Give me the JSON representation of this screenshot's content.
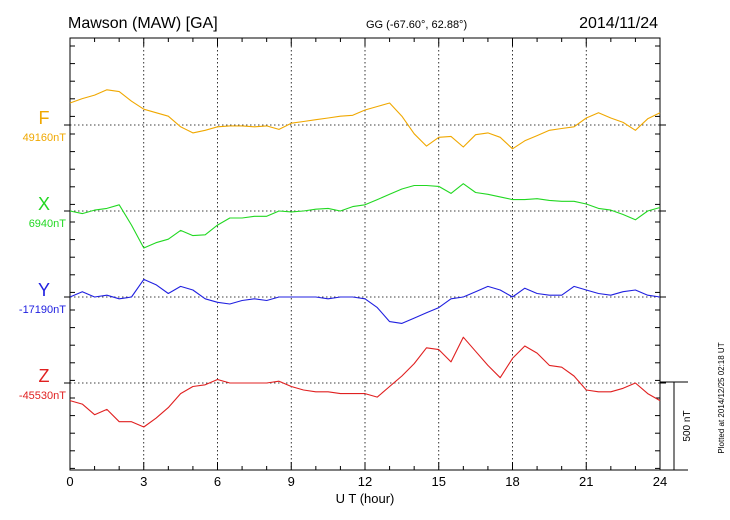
{
  "header": {
    "station": "Mawson (MAW)  [GA]",
    "coords": "GG (-67.60°,  62.88°)",
    "date": "2014/11/24"
  },
  "side_note": "Plotted at 2014/12/25 02:18 UT",
  "scale_label": "500 nT",
  "chart_data": {
    "type": "line",
    "xlabel": "U T (hour)",
    "xlim": [
      0,
      24
    ],
    "xticks": [
      "0",
      "3",
      "6",
      "9",
      "12",
      "15",
      "18",
      "21",
      "24"
    ],
    "scale_bar_nT": 500,
    "grid": true,
    "series": [
      {
        "name": "F",
        "baseline_label": "49160nT",
        "baseline_nT": 49160,
        "color": "#f0a800",
        "x": [
          0,
          0.5,
          1,
          1.5,
          2,
          2.5,
          3,
          3.5,
          4,
          4.5,
          5,
          5.5,
          6,
          6.5,
          7,
          7.5,
          8,
          8.5,
          9,
          9.5,
          10,
          10.5,
          11,
          11.5,
          12,
          12.5,
          13,
          13.5,
          14,
          14.5,
          15,
          15.5,
          16,
          16.5,
          17,
          17.5,
          18,
          18.5,
          19,
          19.5,
          20,
          20.5,
          21,
          21.5,
          22,
          22.5,
          23,
          23.5,
          24
        ],
        "offset_nT": [
          125,
          150,
          170,
          200,
          190,
          135,
          90,
          70,
          50,
          -10,
          -45,
          -30,
          -10,
          -5,
          -5,
          -10,
          -5,
          -25,
          10,
          20,
          30,
          40,
          50,
          55,
          85,
          105,
          125,
          50,
          -50,
          -120,
          -70,
          -65,
          -125,
          -55,
          -45,
          -70,
          -135,
          -90,
          -60,
          -30,
          -20,
          -10,
          40,
          70,
          40,
          15,
          -30,
          35,
          70
        ]
      },
      {
        "name": "X",
        "baseline_label": "6940nT",
        "baseline_nT": 6940,
        "color": "#22d822",
        "x": [
          0,
          0.5,
          1,
          1.5,
          2,
          2.5,
          3,
          3.5,
          4,
          4.5,
          5,
          5.5,
          6,
          6.5,
          7,
          7.5,
          8,
          8.5,
          9,
          9.5,
          10,
          10.5,
          11,
          11.5,
          12,
          12.5,
          13,
          13.5,
          14,
          14.5,
          15,
          15.5,
          16,
          16.5,
          17,
          17.5,
          18,
          18.5,
          19,
          19.5,
          20,
          20.5,
          21,
          21.5,
          22,
          22.5,
          23,
          23.5,
          24
        ],
        "offset_nT": [
          0,
          -15,
          5,
          15,
          35,
          -80,
          -210,
          -180,
          -160,
          -110,
          -140,
          -135,
          -80,
          -40,
          -40,
          -30,
          -30,
          0,
          -5,
          0,
          10,
          15,
          0,
          25,
          35,
          65,
          95,
          125,
          145,
          145,
          140,
          100,
          155,
          105,
          95,
          80,
          65,
          65,
          70,
          60,
          55,
          55,
          40,
          15,
          5,
          -20,
          -50,
          0,
          20
        ]
      },
      {
        "name": "Y",
        "baseline_label": "-17190nT",
        "baseline_nT": -17190,
        "color": "#2020e0",
        "x": [
          0,
          0.5,
          1,
          1.5,
          2,
          2.5,
          3,
          3.5,
          4,
          4.5,
          5,
          5.5,
          6,
          6.5,
          7,
          7.5,
          8,
          8.5,
          9,
          9.5,
          10,
          10.5,
          11,
          11.5,
          12,
          12.5,
          13,
          13.5,
          14,
          14.5,
          15,
          15.5,
          16,
          16.5,
          17,
          17.5,
          18,
          18.5,
          19,
          19.5,
          20,
          20.5,
          21,
          21.5,
          22,
          22.5,
          23,
          23.5,
          24
        ],
        "offset_nT": [
          0,
          30,
          0,
          10,
          -10,
          0,
          100,
          70,
          20,
          60,
          40,
          -10,
          -30,
          -40,
          -20,
          -10,
          -20,
          0,
          0,
          0,
          0,
          -10,
          0,
          0,
          -10,
          -60,
          -140,
          -150,
          -120,
          -90,
          -60,
          -10,
          0,
          30,
          60,
          40,
          0,
          50,
          20,
          10,
          10,
          60,
          40,
          20,
          10,
          30,
          40,
          10,
          0
        ]
      },
      {
        "name": "Z",
        "baseline_label": "-45530nT",
        "baseline_nT": -45530,
        "color": "#e02020",
        "x": [
          0,
          0.5,
          1,
          1.5,
          2,
          2.5,
          3,
          3.5,
          4,
          4.5,
          5,
          5.5,
          6,
          6.5,
          7,
          7.5,
          8,
          8.5,
          9,
          9.5,
          10,
          10.5,
          11,
          11.5,
          12,
          12.5,
          13,
          13.5,
          14,
          14.5,
          15,
          15.5,
          16,
          16.5,
          17,
          17.5,
          18,
          18.5,
          19,
          19.5,
          20,
          20.5,
          21,
          21.5,
          22,
          22.5,
          23,
          23.5,
          24
        ],
        "offset_nT": [
          -100,
          -120,
          -180,
          -150,
          -220,
          -220,
          -250,
          -200,
          -140,
          -60,
          -20,
          -10,
          20,
          0,
          0,
          0,
          0,
          10,
          -20,
          -40,
          -50,
          -50,
          -60,
          -60,
          -60,
          -80,
          -20,
          40,
          110,
          200,
          190,
          120,
          260,
          180,
          100,
          30,
          140,
          210,
          170,
          100,
          90,
          40,
          -40,
          -50,
          -50,
          -30,
          0,
          -60,
          -100
        ]
      }
    ]
  }
}
